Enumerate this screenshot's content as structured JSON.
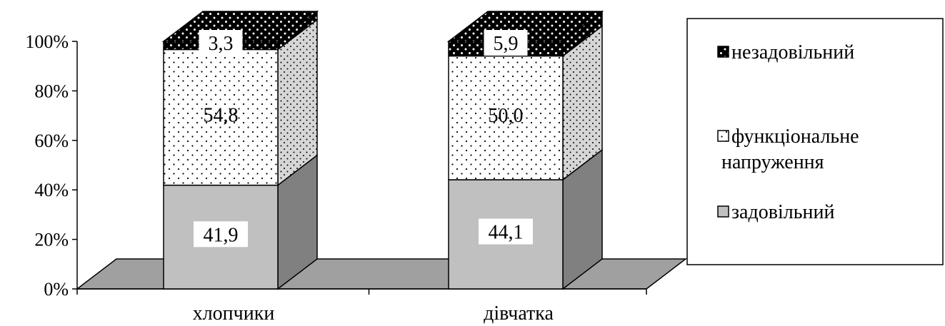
{
  "chart_data": {
    "type": "bar",
    "stacked": true,
    "percent": true,
    "three_d": true,
    "title": "",
    "xlabel": "",
    "ylabel": "",
    "categories": [
      "хлопчики",
      "дівчатка"
    ],
    "series": [
      {
        "name": "задовільний",
        "values": [
          41.9,
          44.1
        ],
        "labels": [
          "41,9",
          "44,1"
        ],
        "color": "#c0c0c0",
        "pattern": "solid"
      },
      {
        "name": "функціональне напруження",
        "values": [
          54.8,
          50.0
        ],
        "labels": [
          "54,8",
          "50,0"
        ],
        "color": "#ffffff",
        "pattern": "dots"
      },
      {
        "name": "незадовільний",
        "values": [
          3.3,
          5.9
        ],
        "labels": [
          "3,3",
          "5,9"
        ],
        "color": "#000000",
        "pattern": "dark-dots"
      }
    ],
    "ylim": [
      0,
      100
    ],
    "yticks": [
      0,
      20,
      40,
      60,
      80,
      100
    ],
    "ytick_labels": [
      "0%",
      "20%",
      "40%",
      "60%",
      "80%",
      "100%"
    ],
    "grid": false,
    "legend_position": "right",
    "legend_order": [
      "незадовільний",
      "функціональне напруження",
      "задовільний"
    ],
    "legend_lines": {
      "незадовільний": [
        "незадовільний"
      ],
      "функціональне напруження": [
        "функціональне",
        "напруження"
      ],
      "задовільний": [
        "задовільний"
      ]
    },
    "floor_color": "#a0a0a0",
    "side_color": "#808080"
  }
}
